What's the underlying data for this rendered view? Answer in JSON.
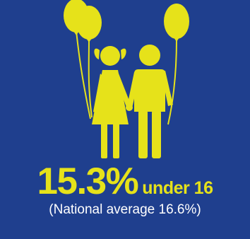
{
  "stat": {
    "value": "15.3%",
    "label": "under 16",
    "comparison": "(National average 16.6%)"
  },
  "illustration": {
    "icon": "children-with-balloons-icon",
    "figures": [
      "girl-icon",
      "boy-icon"
    ],
    "balloon_count": 3
  },
  "colors": {
    "background": "#1f3f8e",
    "accent": "#e6e21a",
    "text": "#ffffff"
  }
}
